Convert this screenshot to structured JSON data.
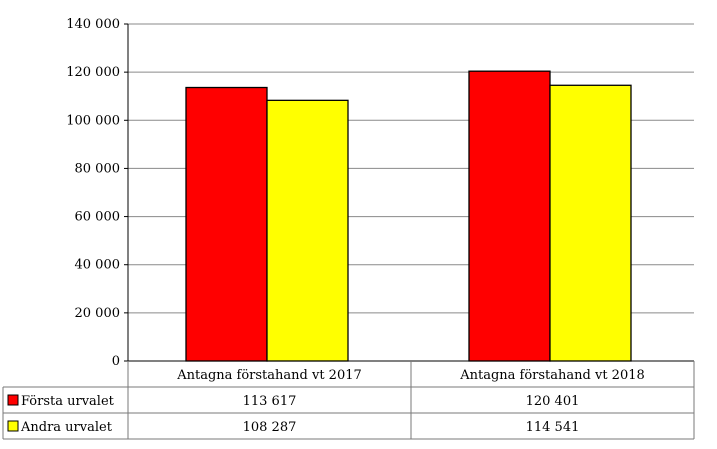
{
  "chart_data": {
    "type": "bar",
    "categories": [
      "Antagna förstahand vt 2017",
      "Antagna förstahand vt 2018"
    ],
    "series": [
      {
        "name": "Första urvalet",
        "values": [
          113617,
          120401
        ],
        "value_labels": [
          "113 617",
          "120 401"
        ],
        "color": "#ff0000"
      },
      {
        "name": "Andra urvalet",
        "values": [
          108287,
          114541
        ],
        "value_labels": [
          "108 287",
          "114 541"
        ],
        "color": "#ffff00"
      }
    ],
    "ylim": [
      0,
      140000
    ],
    "y_ticks": [
      0,
      20000,
      40000,
      60000,
      80000,
      100000,
      120000,
      140000
    ],
    "y_tick_labels": [
      "0",
      "20 000",
      "40 000",
      "60 000",
      "80 000",
      "100 000",
      "120 000",
      "140 000"
    ],
    "grid": true,
    "legend": "data-table-left",
    "data_table": true
  }
}
